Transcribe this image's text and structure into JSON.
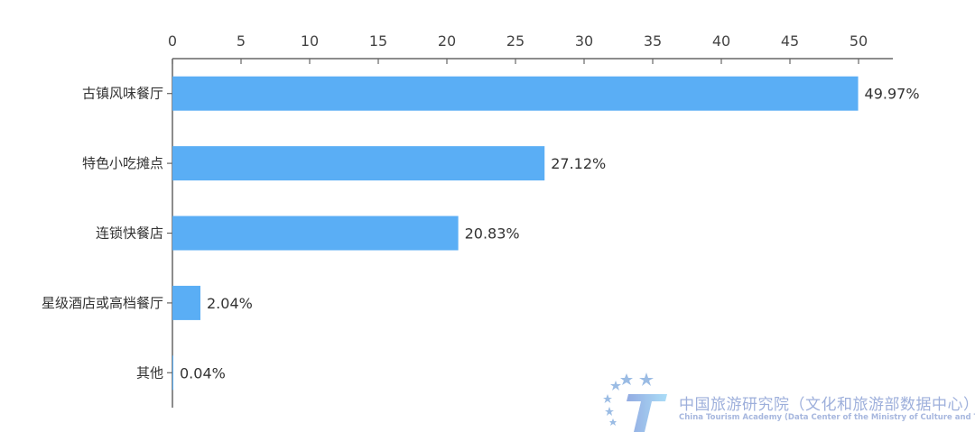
{
  "chart_data": {
    "type": "bar",
    "orientation": "horizontal",
    "categories": [
      "古镇风味餐厅",
      "特色小吃摊点",
      "连锁快餐店",
      "星级酒店或高档餐厅",
      "其他"
    ],
    "values": [
      49.97,
      27.12,
      20.83,
      2.04,
      0.04
    ],
    "data_labels": [
      "49.97%",
      "27.12%",
      "20.83%",
      "2.04%",
      "0.04%"
    ],
    "x_ticks": [
      "0",
      "5",
      "10",
      "15",
      "20",
      "25",
      "30",
      "35",
      "40",
      "45",
      "50"
    ],
    "xlim": [
      0,
      52.5
    ],
    "x_axis_position": "top",
    "grid": false,
    "bar_color": "#5aaef5",
    "title": "",
    "xlabel": "",
    "ylabel": ""
  },
  "watermark": {
    "cn": "中国旅游研究院（文化和旅游部数据中心）",
    "en": "China Tourism Academy (Data Center of the Ministry of Culture and Tourism)"
  }
}
